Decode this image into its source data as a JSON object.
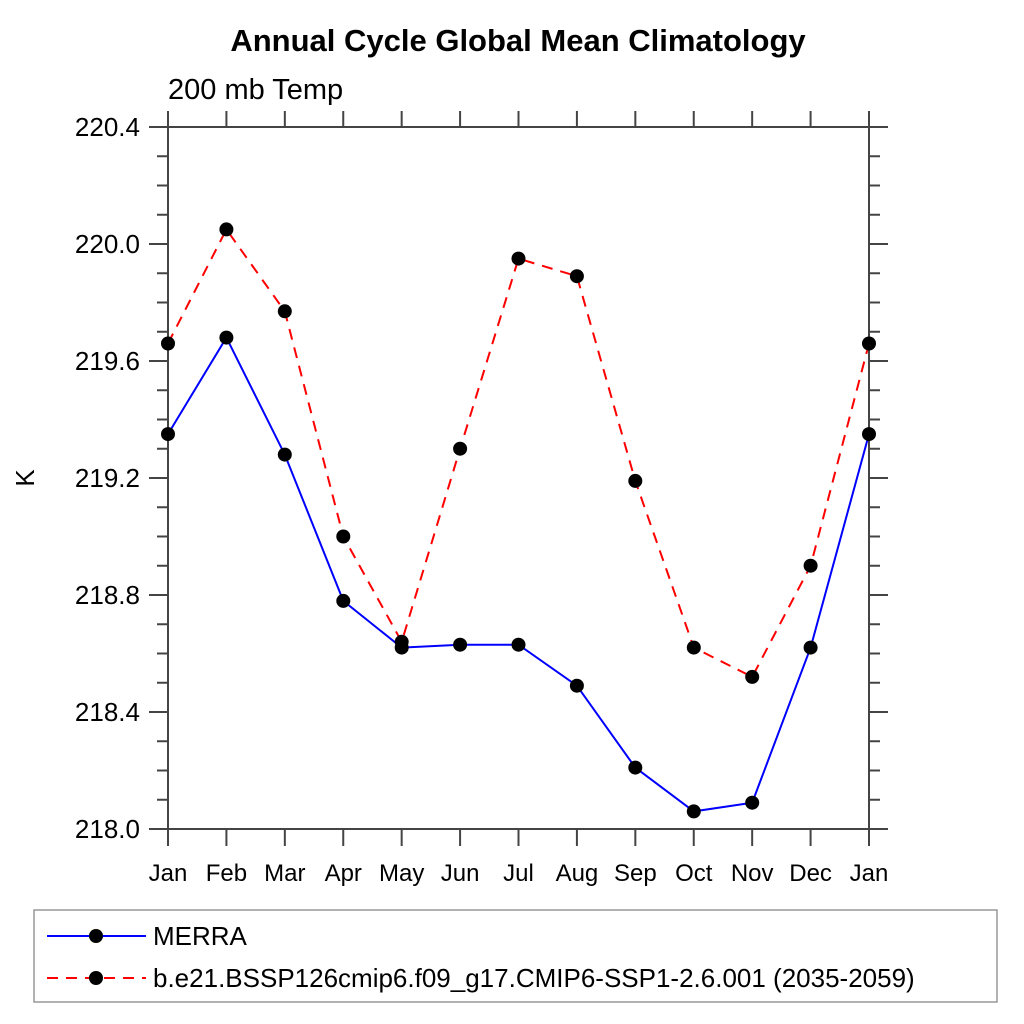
{
  "chart_data": {
    "type": "line",
    "title": "Annual Cycle Global Mean Climatology",
    "subtitle": "200 mb Temp",
    "ylabel": "K",
    "xlabel": "",
    "categories": [
      "Jan",
      "Feb",
      "Mar",
      "Apr",
      "May",
      "Jun",
      "Jul",
      "Aug",
      "Sep",
      "Oct",
      "Nov",
      "Dec",
      "Jan"
    ],
    "ylim": [
      218.0,
      220.4
    ],
    "ytick_major": 0.4,
    "ytick_minor": 0.1,
    "ytick_label_decimals": 1,
    "grid": false,
    "legend_position": "bottom-left-box",
    "series": [
      {
        "name": "MERRA",
        "color": "#0000ff",
        "line_style": "solid",
        "marker": "filled-circle",
        "marker_color": "#000000",
        "values": [
          219.35,
          219.68,
          219.28,
          218.78,
          218.62,
          218.63,
          218.63,
          218.49,
          218.21,
          218.06,
          218.09,
          218.62,
          219.35
        ]
      },
      {
        "name": "b.e21.BSSP126cmip6.f09_g17.CMIP6-SSP1-2.6.001 (2035-2059)",
        "color": "#ff0000",
        "line_style": "dashed",
        "marker": "filled-circle",
        "marker_color": "#000000",
        "values": [
          219.66,
          220.05,
          219.77,
          219.0,
          218.64,
          219.3,
          219.95,
          219.89,
          219.19,
          218.62,
          218.52,
          218.9,
          219.66
        ]
      }
    ]
  },
  "colors": {
    "background": "#ffffff",
    "axis": "#444444",
    "text": "#000000",
    "legend_border": "#999999"
  }
}
